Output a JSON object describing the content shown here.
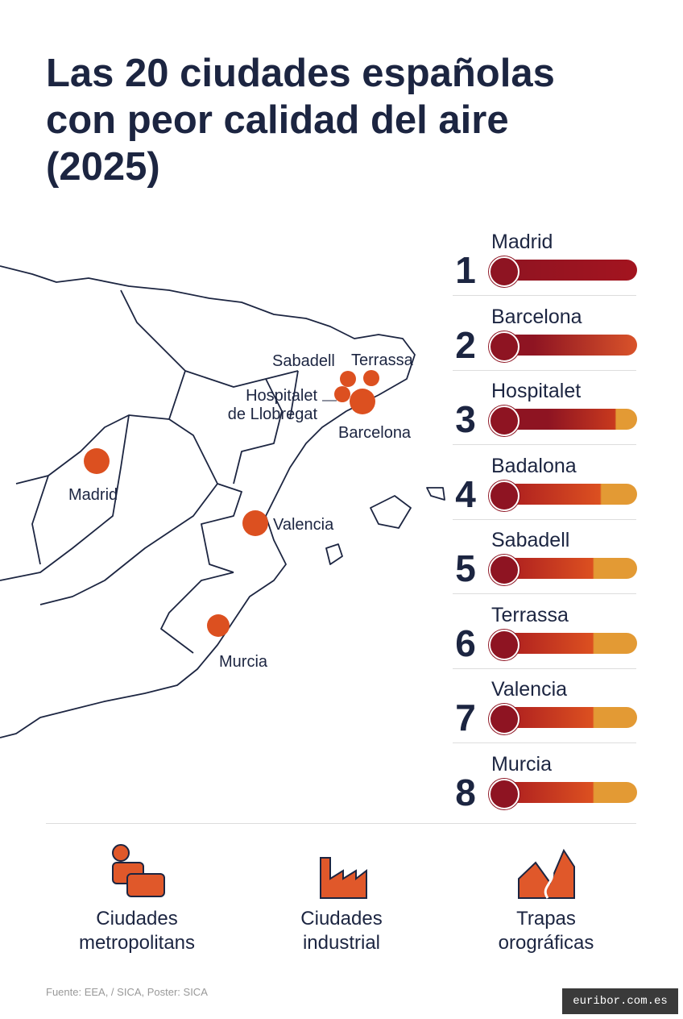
{
  "header": {
    "title": [
      "Las 20 ciudades españolas",
      "con peor calidad del aire",
      "(2025)"
    ]
  },
  "map": {
    "labels": {
      "sabadell": "Sabadell",
      "terrassa": "Terrassa",
      "hospitalet": [
        "Hospitalet",
        "de Llobregat"
      ],
      "barcelona": "Barcelona",
      "madrid": "Madrid",
      "valencia": "Valencia",
      "murcia": "Murcia"
    }
  },
  "ranking": [
    {
      "rank": "1",
      "city": "Madrid"
    },
    {
      "rank": "2",
      "city": "Barcelona"
    },
    {
      "rank": "3",
      "city": "Hospitalet"
    },
    {
      "rank": "4",
      "city": "Badalona"
    },
    {
      "rank": "5",
      "city": "Sabadell"
    },
    {
      "rank": "6",
      "city": "Terrassa"
    },
    {
      "rank": "7",
      "city": "Valencia"
    },
    {
      "rank": "8",
      "city": "Murcia"
    }
  ],
  "categories": [
    [
      "Ciudades",
      "metropolitans"
    ],
    [
      "Ciudades",
      "industrial"
    ],
    [
      "Trapas",
      "orográficas"
    ]
  ],
  "footer": {
    "source": "Fuente: EEA, / SICA, Poster: SICA",
    "brand": "euribor.com.es"
  }
}
